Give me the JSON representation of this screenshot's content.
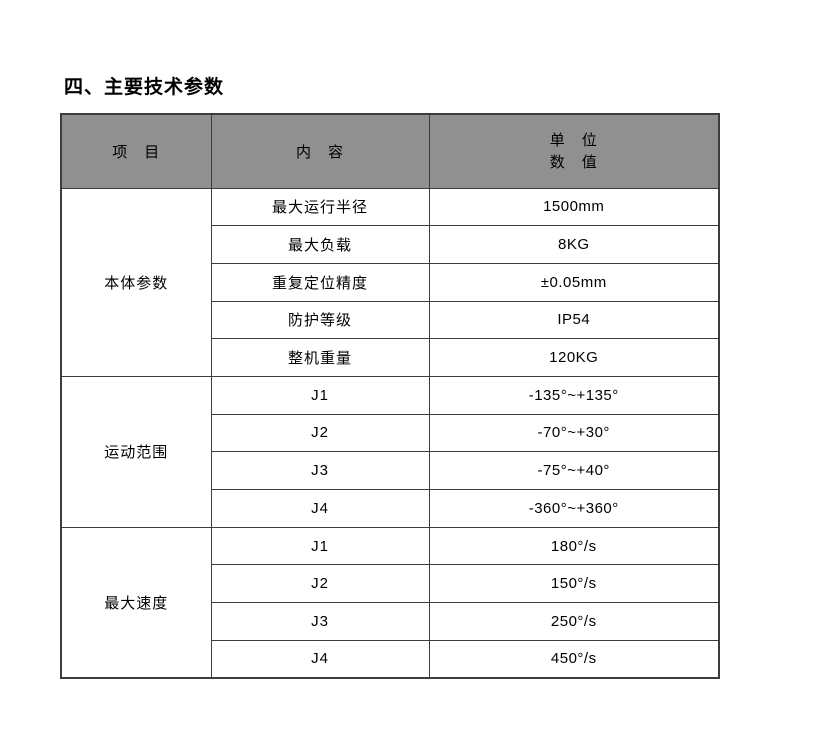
{
  "page": {
    "title": "四、主要技术参数"
  },
  "colors": {
    "header_bg": "#909090",
    "border": "#3d3d3d",
    "text": "#000000"
  },
  "table": {
    "header": {
      "col_item": "项　目",
      "col_content": "内　容",
      "col_unit_line1": "单　位",
      "col_unit_line2": "数　值"
    },
    "groups": [
      {
        "name": "本体参数",
        "rows": [
          {
            "label": "最大运行半径",
            "value": "1500mm"
          },
          {
            "label": "最大负载",
            "value": "8KG"
          },
          {
            "label": "重复定位精度",
            "value": "±0.05mm"
          },
          {
            "label": "防护等级",
            "value": "IP54"
          },
          {
            "label": "整机重量",
            "value": "120KG"
          }
        ]
      },
      {
        "name": "运动范围",
        "rows": [
          {
            "label": "J1",
            "value": "-135°~+135°"
          },
          {
            "label": "J2",
            "value": "-70°~+30°"
          },
          {
            "label": "J3",
            "value": "-75°~+40°"
          },
          {
            "label": "J4",
            "value": "-360°~+360°"
          }
        ]
      },
      {
        "name": "最大速度",
        "rows": [
          {
            "label": "J1",
            "value": "180°/s"
          },
          {
            "label": "J2",
            "value": "150°/s"
          },
          {
            "label": "J3",
            "value": "250°/s"
          },
          {
            "label": "J4",
            "value": "450°/s"
          }
        ]
      }
    ]
  }
}
